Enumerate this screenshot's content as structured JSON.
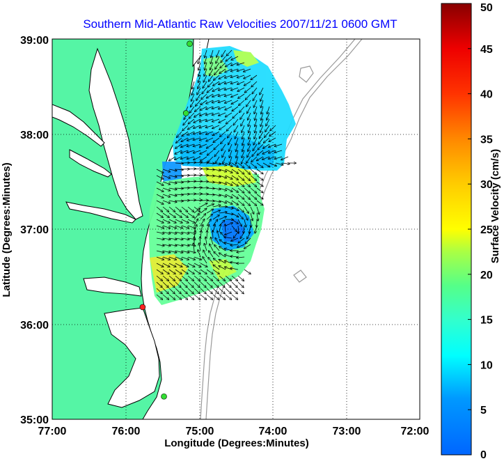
{
  "title": "Southern Mid-Atlantic Raw Velocities 2007/11/21 0600 GMT",
  "map": {
    "xlabel": "Longitude (Degrees:Minutes)",
    "ylabel": "Latitude (Degrees:Minutes)",
    "lon_range": [
      -77,
      -72
    ],
    "lat_range": [
      35,
      39
    ],
    "x_ticks": [
      "77:00",
      "76:00",
      "75:00",
      "74:00",
      "73:00",
      "72:00"
    ],
    "y_ticks": [
      "35:00",
      "36:00",
      "37:00",
      "38:00",
      "39:00"
    ],
    "grid": "dotted",
    "land_color": "#55f5a5",
    "water_color": "#ffffff",
    "sites": [
      {
        "lon": -75.13,
        "lat": 38.95,
        "color": "#33dd33"
      },
      {
        "lon": -75.18,
        "lat": 38.22,
        "color": "#33dd33"
      },
      {
        "lon": -75.77,
        "lat": 36.18,
        "color": "#ff2222"
      },
      {
        "lon": -75.48,
        "lat": 35.24,
        "color": "#33dd33"
      }
    ]
  },
  "colorbar": {
    "label": "Surface Velocity (cm/s)",
    "min": 0,
    "max": 50,
    "ticks": [
      "0",
      "5",
      "10",
      "15",
      "20",
      "25",
      "30",
      "35",
      "40",
      "45",
      "50"
    ],
    "colormap": "jet"
  }
}
